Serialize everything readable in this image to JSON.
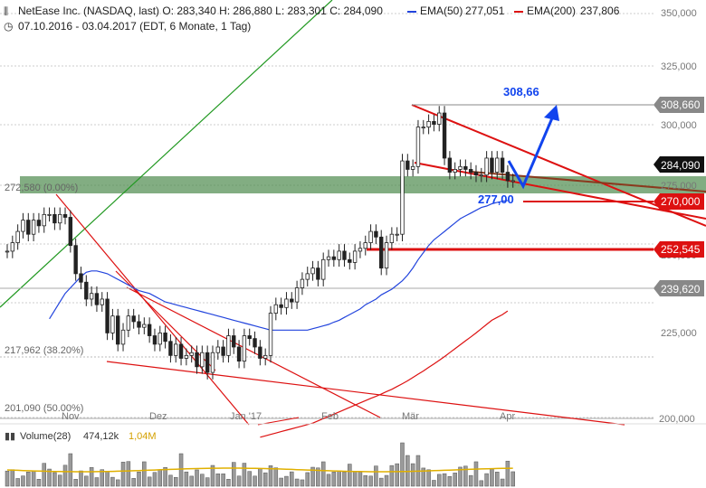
{
  "header": {
    "line1": "NetEase Inc. (NASDAQ, last)  O: 283,340  H: 286,880  L: 283,301  C: 284,090",
    "ema50_label": "EMA(50)",
    "ema50_value": "277,051",
    "ema200_label": "EMA(200)",
    "ema200_value": "237,806",
    "line2": "07.10.2016 - 03.04.2017  (EDT, 6 Monate, 1 Tag)",
    "icon_chart": "candlestick-icon",
    "icon_clock": "clock-icon"
  },
  "volume": {
    "label": "Volume(28)",
    "value": "474,12k",
    "avg": "1,04M"
  },
  "colors": {
    "candle": "#222222",
    "ema50": "#2244dd",
    "ema200": "#dd1111",
    "trendline": "#dd1111",
    "uptrend": "#229922",
    "zone": "#4d8a4d",
    "forecast": "#1144ee",
    "resistance_line": "#8a3a1e",
    "volume_avg": "#e0b000",
    "volume_bar": "#9a9a9a"
  },
  "annotations": {
    "target": "308,66",
    "support": "277,00"
  },
  "chart_data": {
    "type": "line",
    "title": "NetEase Inc. (NASDAQ, last)",
    "y_axis": {
      "range": [
        200,
        355
      ],
      "ticks": [
        "350,000",
        "325,000",
        "300,000",
        "275,000",
        "250,000",
        "225,000",
        "200,000"
      ]
    },
    "x_axis": {
      "ticks": [
        "Nov",
        "Dez",
        "Jan '17",
        "Feb",
        "Mär",
        "Apr"
      ]
    },
    "fib_levels": [
      {
        "label": "272,580 (0.00%)",
        "value": 272.58
      },
      {
        "label": "217,962 (38.20%)",
        "value": 217.962
      },
      {
        "label": "201,090 (50.00%)",
        "value": 201.09
      }
    ],
    "price_tags": [
      {
        "label": "308,660",
        "value": 308.66,
        "style": "grey"
      },
      {
        "label": "284,090",
        "value": 284.09,
        "style": "black"
      },
      {
        "label": "270,000",
        "value": 270.0,
        "style": "red"
      },
      {
        "label": "252,545",
        "value": 252.545,
        "style": "red"
      },
      {
        "label": "239,620",
        "value": 239.62,
        "style": "grey"
      }
    ],
    "price": [
      259,
      262,
      266,
      270,
      265,
      270,
      268,
      272,
      272,
      269,
      272,
      271,
      261,
      251,
      248,
      242,
      244,
      240,
      242,
      230,
      236,
      226,
      231,
      236,
      234,
      232,
      233,
      229,
      226,
      230,
      227,
      222,
      226,
      221,
      222,
      223,
      218,
      223,
      216,
      223,
      225,
      222,
      229,
      225,
      220,
      229,
      228,
      225,
      221,
      222,
      237,
      240,
      239,
      242,
      241,
      246,
      249,
      251,
      253,
      249,
      256,
      257,
      256,
      259,
      256,
      255,
      259,
      260,
      262,
      266,
      264,
      253,
      262,
      265,
      265,
      291,
      288,
      289,
      303,
      303,
      305,
      304,
      308,
      292,
      287,
      288,
      289,
      288,
      287,
      286,
      286,
      292,
      287,
      292,
      287,
      284,
      284
    ],
    "ema50": [
      235,
      238,
      241,
      244,
      246,
      248,
      250,
      251.5,
      252,
      252,
      251.5,
      251,
      250,
      249,
      248,
      247,
      246,
      245,
      244.5,
      244,
      243,
      242,
      241,
      240.5,
      240,
      239.5,
      239,
      238.5,
      238,
      237.5,
      237,
      236.5,
      236,
      235.5,
      235,
      234.5,
      234,
      233.5,
      233,
      232.5,
      232,
      231.5,
      231,
      231,
      231,
      231,
      231,
      231,
      231,
      231,
      231.5,
      232,
      232.5,
      233,
      233.8,
      234.5,
      235.5,
      236.5,
      237.5,
      238.5,
      240,
      241,
      242,
      243.5,
      244.5,
      245.5,
      247,
      248.5,
      250.5,
      253,
      256,
      258.5,
      261,
      263,
      264.5,
      266,
      267.5,
      269,
      270.5,
      271.5,
      272.5,
      273.5,
      274.5,
      275,
      275.8,
      276.3,
      276.7,
      277
    ],
    "ema200": [
      193,
      193.5,
      194,
      194.5,
      195,
      195.5,
      196,
      196.5,
      197,
      197.5,
      198,
      198.8,
      199.6,
      200.4,
      201.2,
      202,
      202.8,
      203.6,
      204.4,
      205.2,
      206,
      206.8,
      207.5,
      208.3,
      209.2,
      210,
      211,
      212,
      213,
      214.2,
      215.4,
      216.5,
      217.8,
      219,
      220.3,
      221.6,
      223,
      224.4,
      225.8,
      227.2,
      228.6,
      230,
      231.5,
      233,
      234.5,
      235.5,
      236.5,
      237.8
    ]
  }
}
